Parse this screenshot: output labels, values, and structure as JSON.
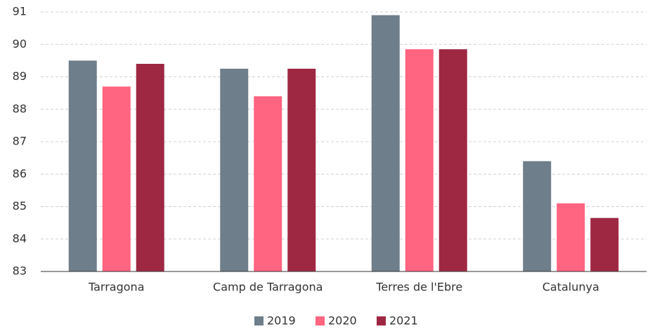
{
  "chart_data": {
    "type": "bar",
    "categories": [
      "Tarragona",
      "Camp de Tarragona",
      "Terres de l'Ebre",
      "Catalunya"
    ],
    "series": [
      {
        "name": "2019",
        "color": "#6e7e8a",
        "values": [
          89.5,
          89.25,
          90.9,
          86.4
        ]
      },
      {
        "name": "2020",
        "color": "#ff6480",
        "values": [
          88.7,
          88.4,
          89.85,
          85.1
        ]
      },
      {
        "name": "2021",
        "color": "#9e2842",
        "values": [
          89.4,
          89.25,
          89.85,
          84.65
        ]
      }
    ],
    "ylim": [
      83,
      91
    ],
    "yticks": [
      83,
      84,
      85,
      86,
      87,
      88,
      89,
      90,
      91
    ],
    "grid": true
  }
}
